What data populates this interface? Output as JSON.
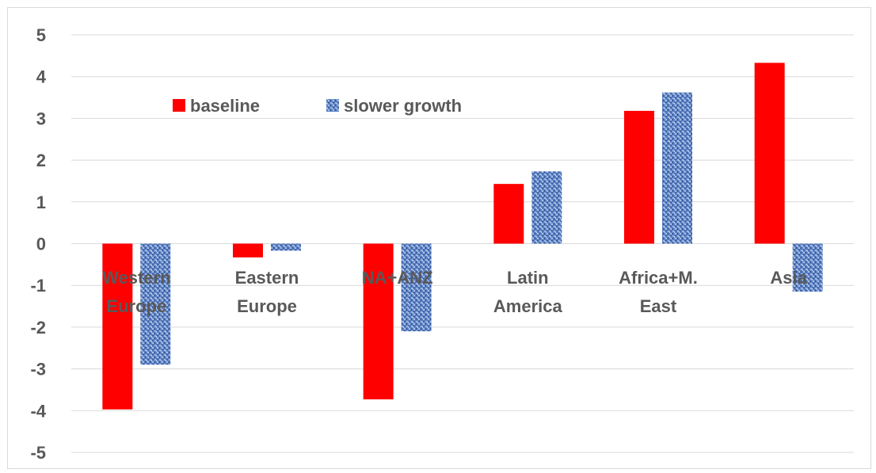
{
  "chart_data": {
    "type": "bar",
    "categories": [
      [
        "Western",
        "Europe"
      ],
      [
        "Eastern",
        "Europe"
      ],
      [
        "NA+ANZ"
      ],
      [
        "Latin",
        "America"
      ],
      [
        "Africa+M.",
        "East"
      ],
      [
        "Asia"
      ]
    ],
    "series": [
      {
        "name": "baseline",
        "color": "#ff0000",
        "pattern": "solid",
        "values": [
          -3.97,
          -0.33,
          -3.73,
          1.43,
          3.18,
          4.33
        ]
      },
      {
        "name": "slower growth",
        "color": "#4a72b8",
        "pattern": "textured-blue",
        "values": [
          -2.9,
          -0.17,
          -2.1,
          1.73,
          3.62,
          -1.15
        ]
      }
    ],
    "ylim": [
      -5,
      5
    ],
    "yticks": [
      5,
      4,
      3,
      2,
      1,
      0,
      -1,
      -2,
      -3,
      -4,
      -5
    ],
    "title": "",
    "xlabel": "",
    "ylabel": "",
    "grid": true,
    "legend_position": "top-left, inside plot"
  }
}
